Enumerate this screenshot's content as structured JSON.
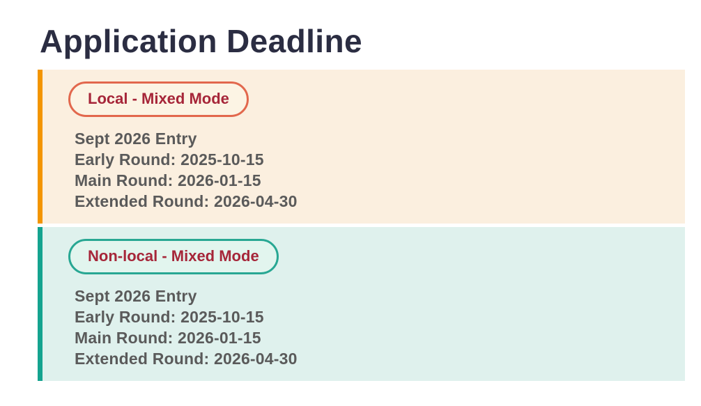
{
  "page": {
    "title": "Application Deadline"
  },
  "colors": {
    "heading_text": "#2b2d42",
    "body_text": "#5a5a5a",
    "badge_text": "#a62639",
    "local_card_bg": "#fbefdf",
    "local_accent": "#f39500",
    "local_badge_bg": "#fcf4e4",
    "local_badge_border": "#e2684d",
    "nonlocal_card_bg": "#dff1ed",
    "nonlocal_accent": "#14a38f",
    "nonlocal_badge_bg": "#e2f5ee",
    "nonlocal_badge_border": "#28a793"
  },
  "cards": [
    {
      "badge": "Local - Mixed Mode",
      "lines": [
        "Sept 2026 Entry",
        "Early Round: 2025-10-15",
        "Main Round: 2026-01-15",
        "Extended Round: 2026-04-30"
      ]
    },
    {
      "badge": "Non-local - Mixed Mode",
      "lines": [
        "Sept 2026 Entry",
        "Early Round: 2025-10-15",
        "Main Round: 2026-01-15",
        "Extended Round: 2026-04-30"
      ]
    }
  ]
}
